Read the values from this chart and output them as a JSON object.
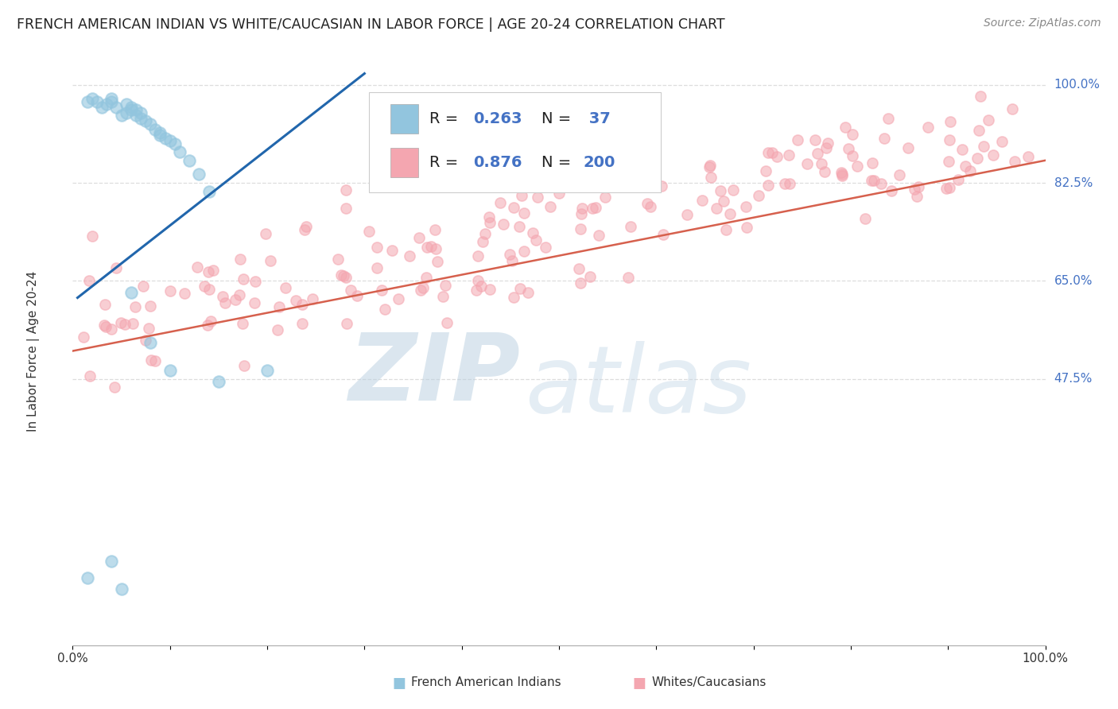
{
  "title": "FRENCH AMERICAN INDIAN VS WHITE/CAUCASIAN IN LABOR FORCE | AGE 20-24 CORRELATION CHART",
  "source": "Source: ZipAtlas.com",
  "ylabel": "In Labor Force | Age 20-24",
  "xlim": [
    0,
    1
  ],
  "ylim": [
    0,
    1.05
  ],
  "ytick_values": [
    0.475,
    0.65,
    0.825,
    1.0
  ],
  "ytick_labels": [
    "47.5%",
    "65.0%",
    "82.5%",
    "100.0%"
  ],
  "blue_color": "#92c5de",
  "pink_color": "#f4a6b0",
  "blue_line_color": "#2166ac",
  "pink_line_color": "#d6604d",
  "watermark_zip": "ZIP",
  "watermark_atlas": "atlas",
  "watermark_color": "#c8d8e8",
  "background_color": "#ffffff",
  "grid_color": "#dddddd",
  "blue_trend_x": [
    0.005,
    0.3
  ],
  "blue_trend_y": [
    0.62,
    1.02
  ],
  "pink_trend_x": [
    0.0,
    1.0
  ],
  "pink_trend_y": [
    0.525,
    0.865
  ],
  "title_fontsize": 12.5,
  "source_fontsize": 10,
  "legend_fontsize": 14,
  "axis_label_fontsize": 11,
  "tick_fontsize": 11
}
